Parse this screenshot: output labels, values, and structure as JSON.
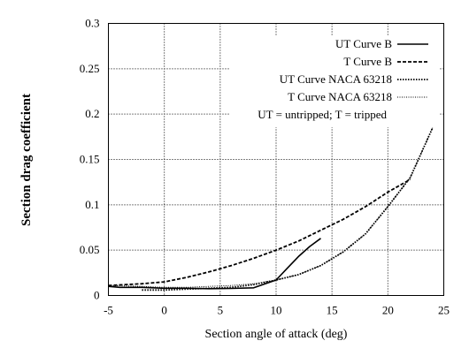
{
  "chart_data": {
    "type": "line",
    "title": "",
    "xlabel": "Section angle of attack (deg)",
    "ylabel": "Section drag coefficient",
    "xlim": [
      -5,
      25
    ],
    "ylim": [
      0,
      0.3
    ],
    "xticks": [
      -5,
      0,
      5,
      10,
      15,
      20,
      25
    ],
    "xtick_labels": [
      "-5",
      "0",
      "5",
      "10",
      "15",
      "20",
      "25"
    ],
    "yticks": [
      0,
      0.05,
      0.1,
      0.15,
      0.2,
      0.25,
      0.3
    ],
    "ytick_labels": [
      "0",
      "0.05",
      "0.1",
      "0.15",
      "0.2",
      "0.25",
      "0.3"
    ],
    "grid": true,
    "legend_position": "top-right",
    "note": "UT = untripped; T = tripped",
    "series": [
      {
        "name": "UT Curve B",
        "style": "solid",
        "x": [
          -5,
          -4,
          -2,
          0,
          2,
          4,
          6,
          8,
          10,
          11,
          12,
          13,
          14
        ],
        "y": [
          0.01,
          0.009,
          0.009,
          0.008,
          0.008,
          0.0075,
          0.0078,
          0.0085,
          0.017,
          0.03,
          0.043,
          0.054,
          0.063
        ]
      },
      {
        "name": "T Curve B",
        "style": "dashed",
        "x": [
          -5,
          -2,
          0,
          2,
          4,
          6,
          8,
          10,
          12,
          14,
          16,
          18,
          20,
          22
        ],
        "y": [
          0.011,
          0.013,
          0.015,
          0.02,
          0.026,
          0.033,
          0.041,
          0.05,
          0.06,
          0.072,
          0.084,
          0.098,
          0.114,
          0.128
        ]
      },
      {
        "name": "UT Curve NACA 63218",
        "style": "dotted",
        "x": [
          -2,
          0,
          2,
          4,
          6,
          8,
          10,
          12,
          14,
          16,
          18,
          20,
          22,
          24
        ],
        "y": [
          0.006,
          0.006,
          0.007,
          0.008,
          0.009,
          0.012,
          0.017,
          0.023,
          0.033,
          0.048,
          0.068,
          0.098,
          0.13,
          0.185
        ]
      },
      {
        "name": "T Curve NACA 63218",
        "style": "fine-dotted",
        "x": [
          -5,
          -2,
          0,
          2,
          4,
          6,
          8,
          10,
          12,
          14,
          16,
          18,
          20,
          22,
          24
        ],
        "y": [
          0.011,
          0.01,
          0.009,
          0.009,
          0.01,
          0.011,
          0.013,
          0.017,
          0.023,
          0.033,
          0.048,
          0.068,
          0.098,
          0.13,
          0.185
        ]
      }
    ]
  }
}
